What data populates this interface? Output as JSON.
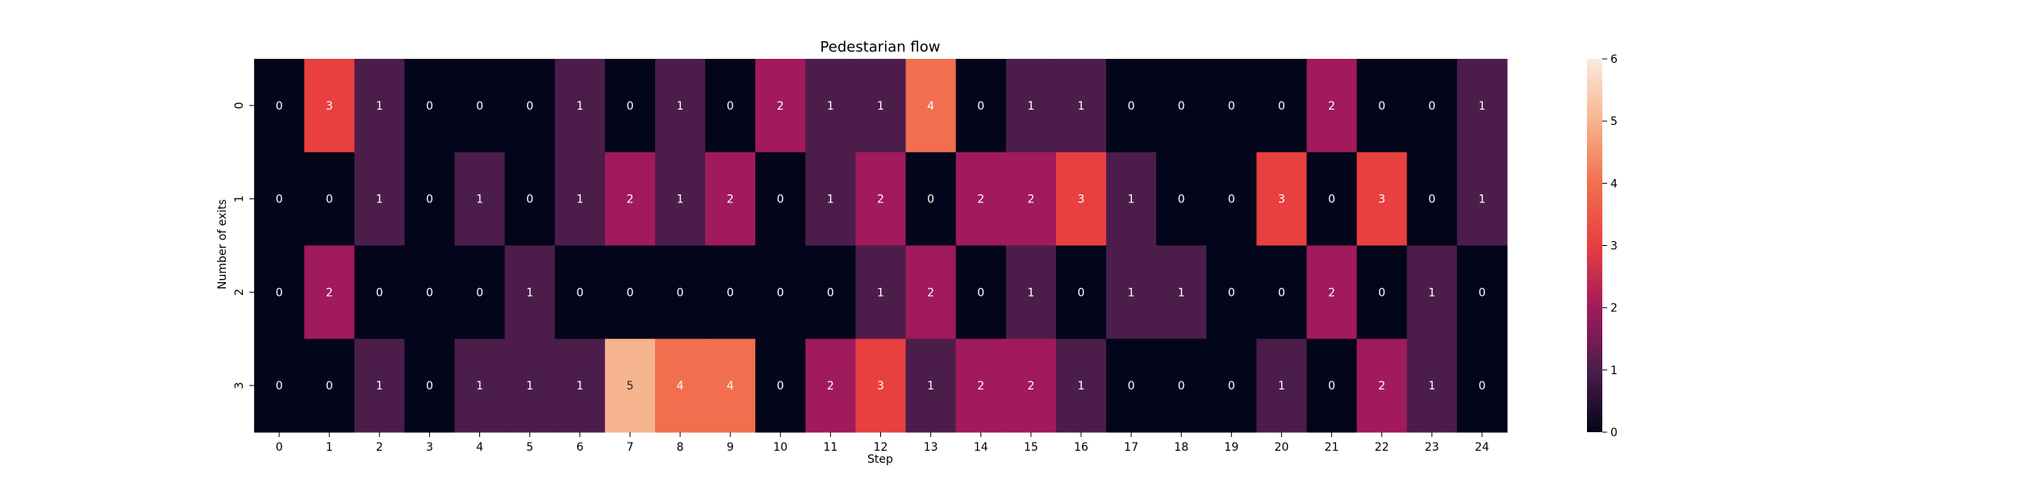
{
  "chart_data": {
    "type": "heatmap",
    "title": "Pedestarian flow",
    "xlabel": "Step",
    "ylabel": "Number of exits",
    "x_ticks": [
      "0",
      "1",
      "2",
      "3",
      "4",
      "5",
      "6",
      "7",
      "8",
      "9",
      "10",
      "11",
      "12",
      "13",
      "14",
      "15",
      "16",
      "17",
      "18",
      "19",
      "20",
      "21",
      "22",
      "23",
      "24"
    ],
    "y_ticks": [
      "0",
      "1",
      "2",
      "3"
    ],
    "values": [
      [
        0,
        3,
        1,
        0,
        0,
        0,
        1,
        0,
        1,
        0,
        2,
        1,
        1,
        4,
        0,
        1,
        1,
        0,
        0,
        0,
        0,
        2,
        0,
        0,
        1
      ],
      [
        0,
        0,
        1,
        0,
        1,
        0,
        1,
        2,
        1,
        2,
        0,
        1,
        2,
        0,
        2,
        2,
        3,
        1,
        0,
        0,
        3,
        0,
        3,
        0,
        1
      ],
      [
        0,
        2,
        0,
        0,
        0,
        1,
        0,
        0,
        0,
        0,
        0,
        0,
        1,
        2,
        0,
        1,
        0,
        1,
        1,
        0,
        0,
        2,
        0,
        1,
        0
      ],
      [
        0,
        0,
        1,
        0,
        1,
        1,
        1,
        5,
        4,
        4,
        0,
        2,
        3,
        1,
        2,
        2,
        1,
        0,
        0,
        0,
        1,
        0,
        2,
        1,
        0
      ]
    ],
    "vmin": 0,
    "vmax": 6,
    "colormap": "rocket",
    "colorbar_ticks": [
      "0",
      "1",
      "2",
      "3",
      "4",
      "5",
      "6"
    ],
    "colors": {
      "0": "#03051a",
      "1": "#4c1d4b",
      "2": "#a11a5b",
      "3": "#e83f3f",
      "4": "#f16f4e",
      "5": "#f6b48e",
      "6": "#faebdd"
    }
  }
}
